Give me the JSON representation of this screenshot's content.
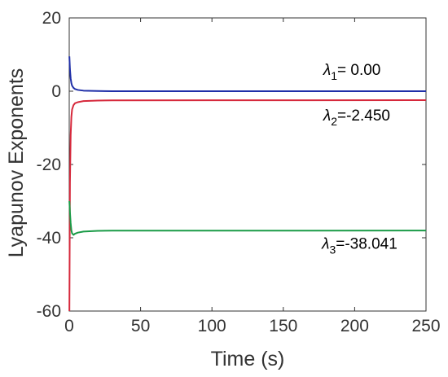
{
  "chart_data": {
    "type": "line",
    "xlabel": "Time (s)",
    "ylabel": "Lyapunov Exponents",
    "xlim": [
      0,
      250
    ],
    "ylim": [
      -60,
      20
    ],
    "xticks": [
      "0",
      "50",
      "100",
      "150",
      "200",
      "250"
    ],
    "yticks": [
      "20",
      "0",
      "-20",
      "-40",
      "-60"
    ],
    "grid": false,
    "legend": "none",
    "series": [
      {
        "color": "#1f2fa8",
        "x": [
          0.1,
          0.5,
          1,
          1.5,
          2,
          3,
          4,
          6,
          10,
          20,
          30,
          250
        ],
        "y": [
          9.5,
          6,
          3.5,
          2.2,
          1.5,
          0.9,
          0.6,
          0.35,
          0.15,
          0.05,
          0.0,
          0.0
        ]
      },
      {
        "color": "#d6283b",
        "x": [
          0.1,
          0.5,
          1,
          1.5,
          2,
          3,
          4,
          6,
          10,
          20,
          30,
          250
        ],
        "y": [
          -60,
          -25,
          -12,
          -7,
          -5,
          -3.8,
          -3.3,
          -3.0,
          -2.7,
          -2.55,
          -2.5,
          -2.45
        ]
      },
      {
        "color": "#1a9b47",
        "x": [
          0.1,
          0.5,
          1,
          1.5,
          2,
          3,
          4,
          6,
          10,
          20,
          30,
          250
        ],
        "y": [
          -30,
          -33,
          -36,
          -38,
          -38.8,
          -39.2,
          -38.9,
          -38.6,
          -38.3,
          -38.1,
          -38.05,
          -38.041
        ]
      }
    ],
    "annotations": [
      {
        "symbol": "λ",
        "sub": "1",
        "text": "= 0.00",
        "x": 178,
        "y": 4.5
      },
      {
        "symbol": "λ",
        "sub": "2",
        "text": "=-2.450",
        "x": 178,
        "y": -8
      },
      {
        "symbol": "λ",
        "sub": "3",
        "text": "=-38.041",
        "x": 177,
        "y": -43
      }
    ]
  }
}
